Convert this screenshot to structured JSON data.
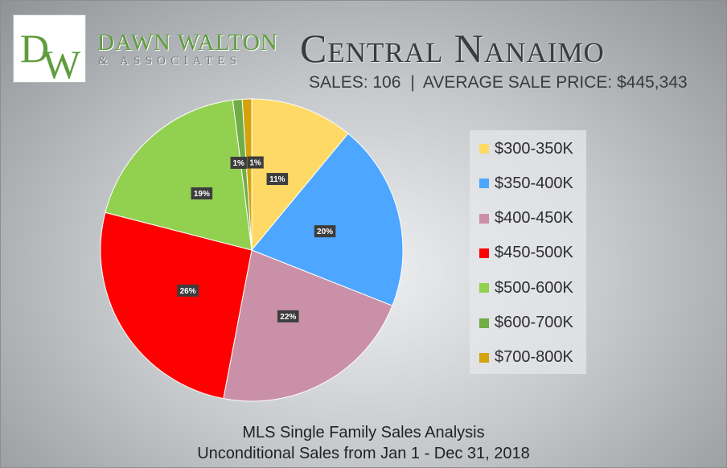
{
  "brand": {
    "logo_text": "DW",
    "name": "DAWN WALTON",
    "sub": "& ASSOCIATES"
  },
  "title": "Central Nanaimo",
  "stats": {
    "sales": "SALES: 106",
    "separator": "|",
    "avg_price": "AVERAGE SALE PRICE: $445,343"
  },
  "footer": {
    "line1": "MLS Single Family Sales Analysis",
    "line2": "Unconditional Sales from Jan 1 - Dec 31, 2018"
  },
  "chart_data": {
    "type": "pie",
    "title": "Central Nanaimo",
    "legend_position": "right",
    "categories": [
      "$300-350K",
      "$350-400K",
      "$400-450K",
      "$450-500K",
      "$500-600K",
      "$600-700K",
      "$700-800K"
    ],
    "values": [
      11,
      20,
      22,
      26,
      19,
      1,
      1
    ],
    "labels": [
      "11%",
      "20%",
      "22%",
      "26%",
      "19%",
      "1%",
      "1%"
    ],
    "colors": [
      "#ffd966",
      "#4da6ff",
      "#c990a7",
      "#ff0000",
      "#92d050",
      "#70ad47",
      "#d4a30c"
    ]
  }
}
